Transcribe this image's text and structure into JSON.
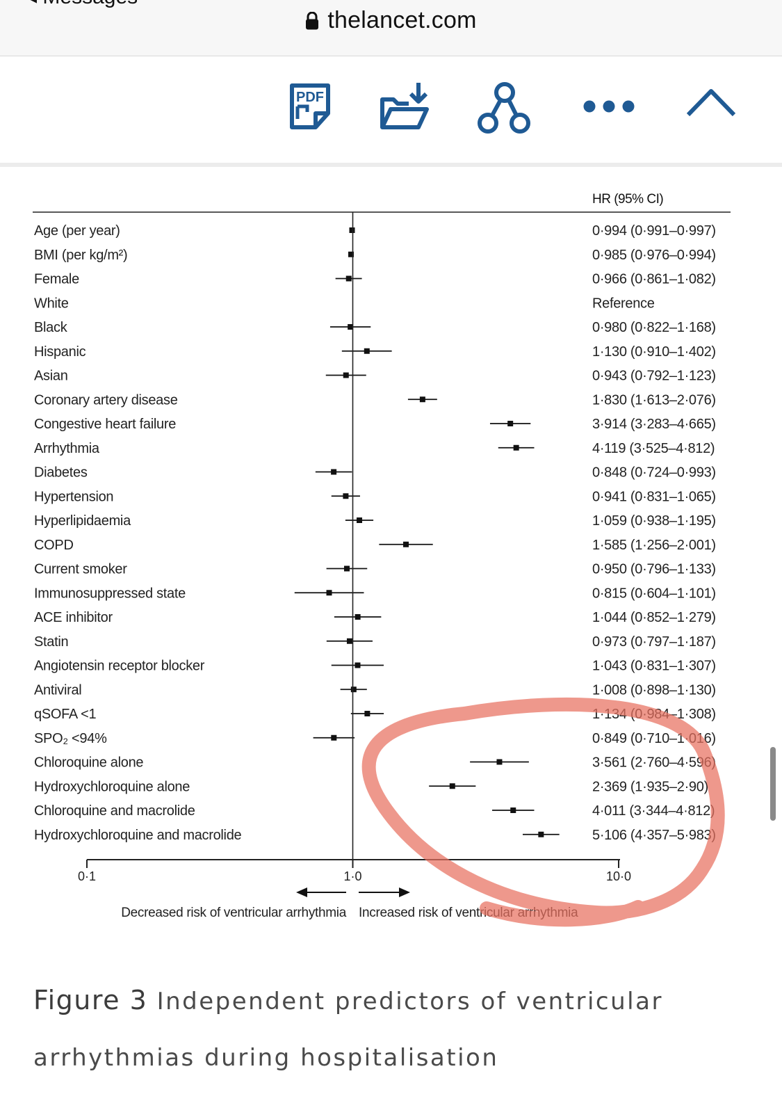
{
  "browser": {
    "back_label": "◂ Messages",
    "domain": "thelancet.com"
  },
  "toolbar": {
    "pdf_badge": "PDF",
    "icons": [
      "pdf-icon",
      "download-folder-icon",
      "share-icon",
      "more-icon",
      "chevron-up-icon"
    ]
  },
  "chart_data": {
    "type": "forest",
    "x_scale": "log",
    "xlim": [
      0.1,
      10.0
    ],
    "reference_line": 1.0,
    "x_ticks": [
      "0·1",
      "1·0",
      "10·0"
    ],
    "column_header": "HR (95% CI)",
    "rows": [
      {
        "label": "Age (per year)",
        "hr": 0.994,
        "lo": 0.991,
        "hi": 0.997,
        "text": "0·994 (0·991–0·997)"
      },
      {
        "label": "BMI (per kg/m²)",
        "hr": 0.985,
        "lo": 0.976,
        "hi": 0.994,
        "text": "0·985 (0·976–0·994)"
      },
      {
        "label": "Female",
        "hr": 0.966,
        "lo": 0.861,
        "hi": 1.082,
        "text": "0·966 (0·861–1·082)"
      },
      {
        "label": "White",
        "hr": null,
        "lo": null,
        "hi": null,
        "text": "Reference"
      },
      {
        "label": "Black",
        "hr": 0.98,
        "lo": 0.822,
        "hi": 1.168,
        "text": "0·980 (0·822–1·168)"
      },
      {
        "label": "Hispanic",
        "hr": 1.13,
        "lo": 0.91,
        "hi": 1.402,
        "text": "1·130 (0·910–1·402)"
      },
      {
        "label": "Asian",
        "hr": 0.943,
        "lo": 0.792,
        "hi": 1.123,
        "text": "0·943 (0·792–1·123)"
      },
      {
        "label": "Coronary artery disease",
        "hr": 1.83,
        "lo": 1.613,
        "hi": 2.076,
        "text": "1·830 (1·613–2·076)"
      },
      {
        "label": "Congestive heart failure",
        "hr": 3.914,
        "lo": 3.283,
        "hi": 4.665,
        "text": "3·914 (3·283–4·665)"
      },
      {
        "label": "Arrhythmia",
        "hr": 4.119,
        "lo": 3.525,
        "hi": 4.812,
        "text": "4·119 (3·525–4·812)"
      },
      {
        "label": "Diabetes",
        "hr": 0.848,
        "lo": 0.724,
        "hi": 0.993,
        "text": "0·848 (0·724–0·993)"
      },
      {
        "label": "Hypertension",
        "hr": 0.941,
        "lo": 0.831,
        "hi": 1.065,
        "text": "0·941 (0·831–1·065)"
      },
      {
        "label": "Hyperlipidaemia",
        "hr": 1.059,
        "lo": 0.938,
        "hi": 1.195,
        "text": "1·059 (0·938–1·195)"
      },
      {
        "label": "COPD",
        "hr": 1.585,
        "lo": 1.256,
        "hi": 2.001,
        "text": "1·585 (1·256–2·001)"
      },
      {
        "label": "Current smoker",
        "hr": 0.95,
        "lo": 0.796,
        "hi": 1.133,
        "text": "0·950 (0·796–1·133)"
      },
      {
        "label": "Immunosuppressed state",
        "hr": 0.815,
        "lo": 0.604,
        "hi": 1.101,
        "text": "0·815 (0·604–1·101)"
      },
      {
        "label": "ACE inhibitor",
        "hr": 1.044,
        "lo": 0.852,
        "hi": 1.279,
        "text": "1·044 (0·852–1·279)"
      },
      {
        "label": "Statin",
        "hr": 0.973,
        "lo": 0.797,
        "hi": 1.187,
        "text": "0·973 (0·797–1·187)"
      },
      {
        "label": "Angiotensin receptor blocker",
        "hr": 1.043,
        "lo": 0.831,
        "hi": 1.307,
        "text": "1·043 (0·831–1·307)"
      },
      {
        "label": "Antiviral",
        "hr": 1.008,
        "lo": 0.898,
        "hi": 1.13,
        "text": "1·008 (0·898–1·130)"
      },
      {
        "label": "qSOFA <1",
        "hr": 1.134,
        "lo": 0.984,
        "hi": 1.308,
        "text": "1·134 (0·984–1·308)"
      },
      {
        "label": "SPO₂ <94%",
        "hr": 0.849,
        "lo": 0.71,
        "hi": 1.016,
        "text": "0·849 (0·710–1·016)"
      },
      {
        "label": "Chloroquine alone",
        "hr": 3.561,
        "lo": 2.76,
        "hi": 4.596,
        "text": "3·561 (2·760–4·596)"
      },
      {
        "label": "Hydroxychloroquine alone",
        "hr": 2.369,
        "lo": 1.935,
        "hi": 2.9,
        "text": "2·369 (1·935–2·90)"
      },
      {
        "label": "Chloroquine and macrolide",
        "hr": 4.011,
        "lo": 3.344,
        "hi": 4.812,
        "text": "4·011 (3·344–4·812)"
      },
      {
        "label": "Hydroxychloroquine and macrolide",
        "hr": 5.106,
        "lo": 4.357,
        "hi": 5.983,
        "text": "5·106 (4·357–5·983)"
      }
    ],
    "direction_labels": {
      "left": "Decreased risk of ventricular arrhythmia",
      "right": "Increased risk of ventricular arrhythmia"
    },
    "annotation_color": "#e8705f"
  },
  "caption": {
    "label": "Figure 3",
    "text": "Independent predictors of ventricular arrhythmias during hospitalisation"
  }
}
